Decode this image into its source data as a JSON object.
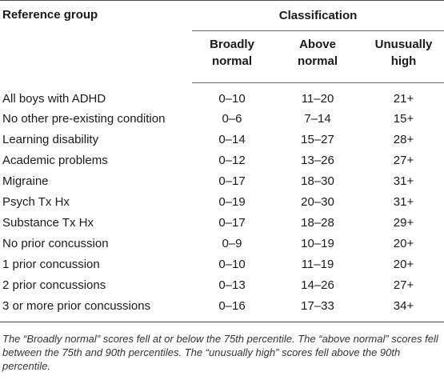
{
  "table": {
    "header": {
      "group_label": "Reference group",
      "classification_label": "Classification",
      "col_broadly_normal": [
        "Broadly",
        "normal"
      ],
      "col_above_normal": [
        "Above",
        "normal"
      ],
      "col_unusually_high": [
        "Unusually",
        "high"
      ]
    },
    "rows": [
      {
        "group": "All boys with ADHD",
        "broadly_normal": "0–10",
        "above_normal": "11–20",
        "unusually_high": "21+"
      },
      {
        "group": "No other pre-existing condition",
        "broadly_normal": "0–6",
        "above_normal": "7–14",
        "unusually_high": "15+"
      },
      {
        "group": "Learning disability",
        "broadly_normal": "0–14",
        "above_normal": "15–27",
        "unusually_high": "28+"
      },
      {
        "group": "Academic problems",
        "broadly_normal": "0–12",
        "above_normal": "13–26",
        "unusually_high": "27+"
      },
      {
        "group": "Migraine",
        "broadly_normal": "0–17",
        "above_normal": "18–30",
        "unusually_high": "31+"
      },
      {
        "group": "Psych Tx Hx",
        "broadly_normal": "0–19",
        "above_normal": "20–30",
        "unusually_high": "31+"
      },
      {
        "group": "Substance Tx Hx",
        "broadly_normal": "0–17",
        "above_normal": "18–28",
        "unusually_high": "29+"
      },
      {
        "group": "No prior concussion",
        "broadly_normal": "0–9",
        "above_normal": "10–19",
        "unusually_high": "20+"
      },
      {
        "group": "1 prior concussion",
        "broadly_normal": "0–10",
        "above_normal": "11–19",
        "unusually_high": "20+"
      },
      {
        "group": "2 prior concussions",
        "broadly_normal": "0–13",
        "above_normal": "14–26",
        "unusually_high": "27+"
      },
      {
        "group": "3 or more prior concussions",
        "broadly_normal": "0–16",
        "above_normal": "17–33",
        "unusually_high": "34+"
      }
    ]
  },
  "caption": "The “Broadly normal” scores fell at or below the 75th percentile. The “above normal” scores fell between the 75th and 90th percentiles. The “unusually high” scores fell above the 90th percentile."
}
